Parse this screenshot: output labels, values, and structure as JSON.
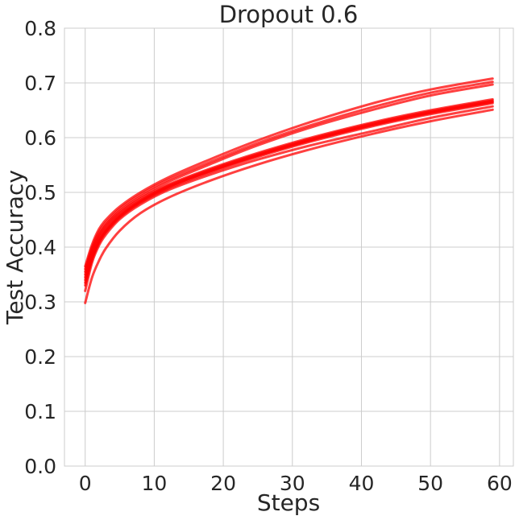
{
  "chart_data": {
    "type": "line",
    "title": "Dropout 0.6",
    "xlabel": "Steps",
    "ylabel": "Test Accuracy",
    "xlim": [
      -3,
      62
    ],
    "ylim": [
      0.0,
      0.8
    ],
    "xticks": [
      "0",
      "10",
      "20",
      "30",
      "40",
      "50",
      "60"
    ],
    "yticks": [
      "0.0",
      "0.1",
      "0.2",
      "0.3",
      "0.4",
      "0.5",
      "0.6",
      "0.7",
      "0.8"
    ],
    "grid": true,
    "color": "#ff0000",
    "series": [
      {
        "x": [
          0,
          1,
          2,
          3,
          5,
          8,
          12,
          18,
          25,
          33,
          42,
          50,
          59
        ],
        "values": [
          0.365,
          0.405,
          0.433,
          0.45,
          0.474,
          0.5,
          0.527,
          0.56,
          0.595,
          0.63,
          0.664,
          0.688,
          0.708
        ]
      },
      {
        "x": [
          0,
          1,
          2,
          3,
          5,
          8,
          12,
          18,
          25,
          33,
          42,
          50,
          59
        ],
        "values": [
          0.36,
          0.4,
          0.428,
          0.445,
          0.47,
          0.496,
          0.523,
          0.555,
          0.59,
          0.624,
          0.657,
          0.682,
          0.702
        ]
      },
      {
        "x": [
          0,
          1,
          2,
          3,
          5,
          8,
          12,
          18,
          25,
          33,
          42,
          50,
          59
        ],
        "values": [
          0.355,
          0.395,
          0.423,
          0.441,
          0.466,
          0.492,
          0.519,
          0.551,
          0.586,
          0.62,
          0.652,
          0.677,
          0.697
        ]
      },
      {
        "x": [
          0,
          1,
          2,
          3,
          5,
          8,
          12,
          18,
          25,
          33,
          42,
          50,
          59
        ],
        "values": [
          0.35,
          0.392,
          0.42,
          0.438,
          0.463,
          0.489,
          0.514,
          0.543,
          0.572,
          0.601,
          0.629,
          0.65,
          0.67
        ]
      },
      {
        "x": [
          0,
          1,
          2,
          3,
          5,
          8,
          12,
          18,
          25,
          33,
          42,
          50,
          59
        ],
        "values": [
          0.345,
          0.388,
          0.416,
          0.434,
          0.46,
          0.486,
          0.512,
          0.541,
          0.57,
          0.599,
          0.627,
          0.648,
          0.668
        ]
      },
      {
        "x": [
          0,
          1,
          2,
          3,
          5,
          8,
          12,
          18,
          25,
          33,
          42,
          50,
          59
        ],
        "values": [
          0.34,
          0.383,
          0.412,
          0.431,
          0.457,
          0.484,
          0.51,
          0.539,
          0.568,
          0.597,
          0.625,
          0.646,
          0.666
        ]
      },
      {
        "x": [
          0,
          1,
          2,
          3,
          5,
          8,
          12,
          18,
          25,
          33,
          42,
          50,
          59
        ],
        "values": [
          0.335,
          0.38,
          0.41,
          0.429,
          0.456,
          0.483,
          0.509,
          0.538,
          0.567,
          0.596,
          0.624,
          0.645,
          0.665
        ]
      },
      {
        "x": [
          0,
          1,
          2,
          3,
          5,
          8,
          12,
          18,
          25,
          33,
          42,
          50,
          59
        ],
        "values": [
          0.33,
          0.377,
          0.407,
          0.427,
          0.454,
          0.481,
          0.507,
          0.536,
          0.565,
          0.594,
          0.622,
          0.643,
          0.663
        ]
      },
      {
        "x": [
          0,
          1,
          2,
          3,
          5,
          8,
          12,
          18,
          25,
          33,
          42,
          50,
          59
        ],
        "values": [
          0.32,
          0.372,
          0.403,
          0.423,
          0.451,
          0.478,
          0.504,
          0.532,
          0.56,
          0.587,
          0.613,
          0.636,
          0.657
        ]
      },
      {
        "x": [
          0,
          1,
          2,
          3,
          5,
          8,
          12,
          18,
          25,
          33,
          42,
          50,
          59
        ],
        "values": [
          0.298,
          0.345,
          0.375,
          0.398,
          0.43,
          0.462,
          0.49,
          0.521,
          0.551,
          0.58,
          0.608,
          0.63,
          0.651
        ]
      }
    ]
  }
}
